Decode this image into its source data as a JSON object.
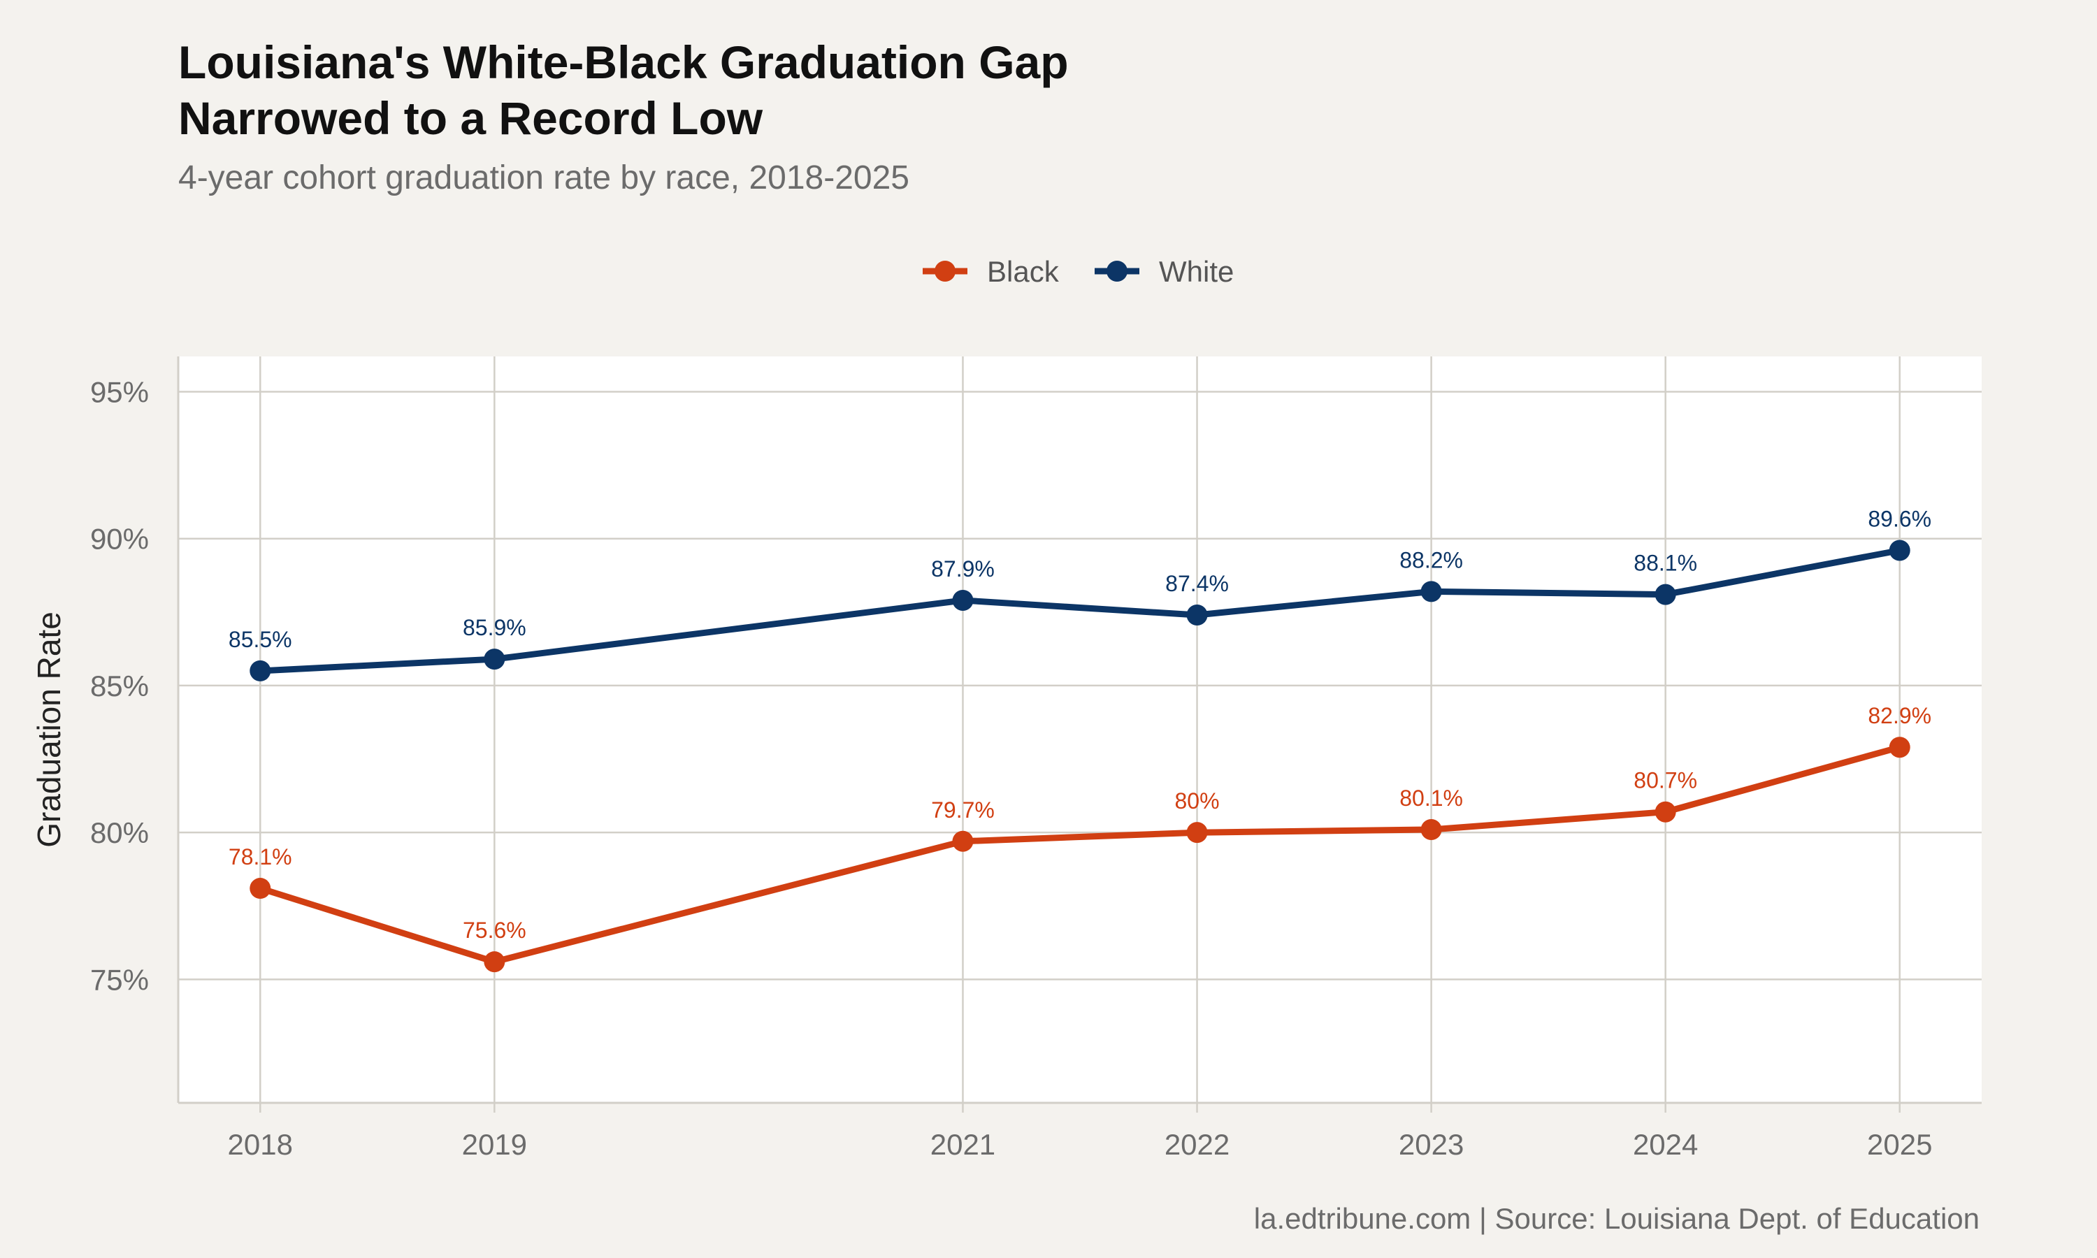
{
  "chart_data": {
    "type": "line",
    "title_lines": [
      "Louisiana's White-Black Graduation Gap",
      "Narrowed to a Record Low"
    ],
    "subtitle": "4-year cohort graduation rate by race, 2018-2025",
    "ylabel": "Graduation Rate",
    "xlabel": "",
    "caption": "la.edtribune.com | Source: Louisiana Dept. of Education",
    "x": [
      2018,
      2019,
      2021,
      2022,
      2023,
      2024,
      2025
    ],
    "x_ticks": [
      "2018",
      "2019",
      "2021",
      "2022",
      "2023",
      "2024",
      "2025"
    ],
    "xlim": [
      2017.65,
      2025.35
    ],
    "ylim": [
      70.8,
      96.2
    ],
    "y_ticks": [
      75,
      80,
      85,
      90,
      95
    ],
    "y_tick_labels": [
      "75%",
      "80%",
      "85%",
      "90%",
      "95%"
    ],
    "grid": true,
    "legend_position": "top",
    "series": [
      {
        "name": "Black",
        "color": "#d13f12",
        "values": [
          78.1,
          75.6,
          79.7,
          80.0,
          80.1,
          80.7,
          82.9
        ],
        "labels": [
          "78.1%",
          "75.6%",
          "79.7%",
          "80%",
          "80.1%",
          "80.7%",
          "82.9%"
        ]
      },
      {
        "name": "White",
        "color": "#0c3566",
        "values": [
          85.5,
          85.9,
          87.9,
          87.4,
          88.2,
          88.1,
          89.6
        ],
        "labels": [
          "85.5%",
          "85.9%",
          "87.9%",
          "87.4%",
          "88.2%",
          "88.1%",
          "89.6%"
        ]
      }
    ],
    "colors": {
      "background": "#f4f2ee",
      "panel": "#ffffff",
      "grid": "#d2cfc8"
    }
  }
}
